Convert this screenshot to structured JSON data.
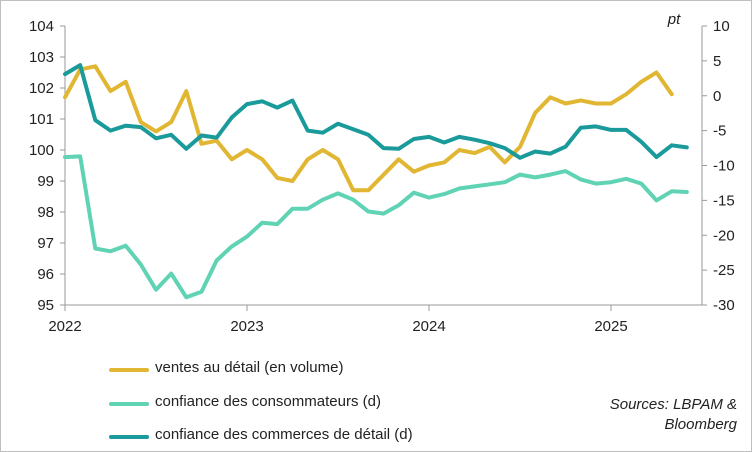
{
  "chart_data": {
    "type": "line",
    "x_labels": [
      "2022",
      "2023",
      "2024",
      "2025"
    ],
    "x_start": 2022.0,
    "x_end": 2025.5,
    "left_axis": {
      "min": 95,
      "max": 104,
      "ticks": [
        "95",
        "96",
        "97",
        "98",
        "99",
        "100",
        "101",
        "102",
        "103",
        "104"
      ]
    },
    "right_axis": {
      "min": -30,
      "max": 10,
      "unit": "pt",
      "ticks": [
        "-30",
        "-25",
        "-20",
        "-15",
        "-10",
        "-5",
        "0",
        "5",
        "10"
      ]
    },
    "series": [
      {
        "name": "ventes au détail (en volume)",
        "axis": "left",
        "color": "#e1b632",
        "start": 2022.0,
        "values": [
          101.7,
          102.6,
          102.7,
          101.9,
          102.2,
          100.9,
          100.6,
          100.9,
          101.9,
          100.2,
          100.3,
          99.7,
          100.0,
          99.7,
          99.1,
          99.0,
          99.7,
          100.0,
          99.7,
          98.7,
          98.7,
          99.2,
          99.7,
          99.3,
          99.5,
          99.6,
          100.0,
          99.9,
          100.1,
          99.6,
          100.1,
          101.2,
          101.7,
          101.5,
          101.6,
          101.5,
          101.5,
          101.8,
          102.2,
          102.5,
          101.8
        ]
      },
      {
        "name": "confiance des consommateurs (d)",
        "axis": "right",
        "color": "#5fd3b3",
        "start": 2022.0,
        "values": [
          -8.8,
          -8.7,
          -21.9,
          -22.3,
          -21.5,
          -24.2,
          -27.8,
          -25.5,
          -28.9,
          -28.1,
          -23.6,
          -21.6,
          -20.2,
          -18.2,
          -18.4,
          -16.2,
          -16.2,
          -14.9,
          -14.0,
          -14.9,
          -16.6,
          -16.9,
          -15.7,
          -13.9,
          -14.6,
          -14.1,
          -13.3,
          -13.0,
          -12.7,
          -12.4,
          -11.3,
          -11.7,
          -11.3,
          -10.8,
          -12.0,
          -12.6,
          -12.4,
          -11.9,
          -12.6,
          -15.0,
          -13.7,
          -13.8
        ]
      },
      {
        "name": "confiance des commerces de détail (d)",
        "axis": "right",
        "color": "#1a9a9a",
        "start": 2022.0,
        "values": [
          3.1,
          4.4,
          -3.5,
          -5.0,
          -4.3,
          -4.5,
          -6.1,
          -5.6,
          -7.6,
          -5.7,
          -6.0,
          -3.1,
          -1.2,
          -0.8,
          -1.7,
          -0.7,
          -5.0,
          -5.3,
          -4.0,
          -4.8,
          -5.6,
          -7.5,
          -7.6,
          -6.2,
          -5.9,
          -6.7,
          -5.9,
          -6.3,
          -6.8,
          -7.5,
          -8.9,
          -8.0,
          -8.3,
          -7.3,
          -4.6,
          -4.4,
          -4.9,
          -4.9,
          -6.6,
          -8.8,
          -7.1,
          -7.4
        ]
      }
    ]
  },
  "source_text": [
    "Sources: LBPAM &",
    "Bloomberg"
  ]
}
